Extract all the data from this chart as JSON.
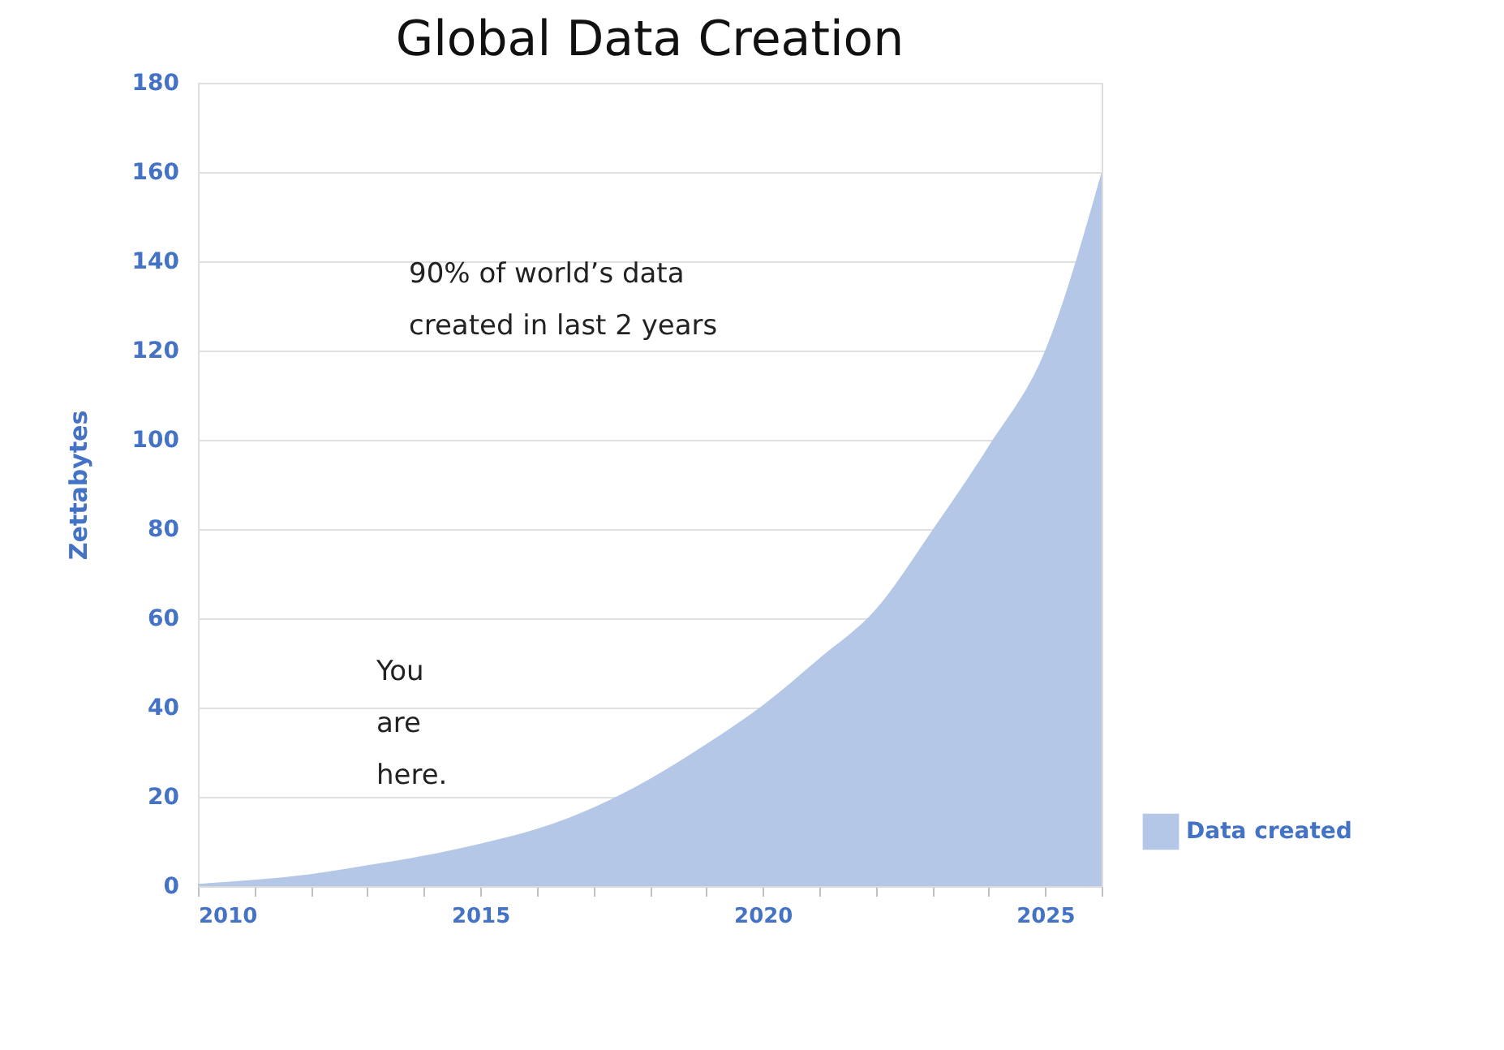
{
  "chart_data": {
    "type": "area",
    "title": "Global Data Creation",
    "ylabel": "Zettabytes",
    "x": [
      2010,
      2011,
      2012,
      2013,
      2014,
      2015,
      2016,
      2017,
      2018,
      2019,
      2020,
      2021,
      2022,
      2023,
      2024,
      2025,
      2026
    ],
    "series": [
      {
        "name": "Data created",
        "color": "#b4c7e7",
        "values": [
          0.5,
          1.4,
          2.7,
          4.7,
          6.8,
          9.5,
          12.8,
          17.6,
          24,
          31.8,
          40.5,
          51,
          62,
          79.7,
          98.6,
          120,
          160
        ]
      }
    ],
    "xlim": [
      2010,
      2026
    ],
    "xticks": [
      {
        "value": 2010,
        "label": "2010"
      },
      {
        "value": 2011,
        "label": null
      },
      {
        "value": 2012,
        "label": null
      },
      {
        "value": 2013,
        "label": null
      },
      {
        "value": 2014,
        "label": null
      },
      {
        "value": 2015,
        "label": "2015"
      },
      {
        "value": 2016,
        "label": null
      },
      {
        "value": 2017,
        "label": null
      },
      {
        "value": 2018,
        "label": null
      },
      {
        "value": 2019,
        "label": null
      },
      {
        "value": 2020,
        "label": "2020"
      },
      {
        "value": 2021,
        "label": null
      },
      {
        "value": 2022,
        "label": null
      },
      {
        "value": 2023,
        "label": null
      },
      {
        "value": 2024,
        "label": null
      },
      {
        "value": 2025,
        "label": "2025"
      },
      {
        "value": 2026,
        "label": null
      }
    ],
    "ylim": [
      0,
      180
    ],
    "yticks": [
      0,
      20,
      40,
      60,
      80,
      100,
      120,
      140,
      160,
      180
    ],
    "grid": "y",
    "legend": "bottom right",
    "annotations": [
      "90% of world’s data created in last 2 years",
      "You are here."
    ]
  }
}
